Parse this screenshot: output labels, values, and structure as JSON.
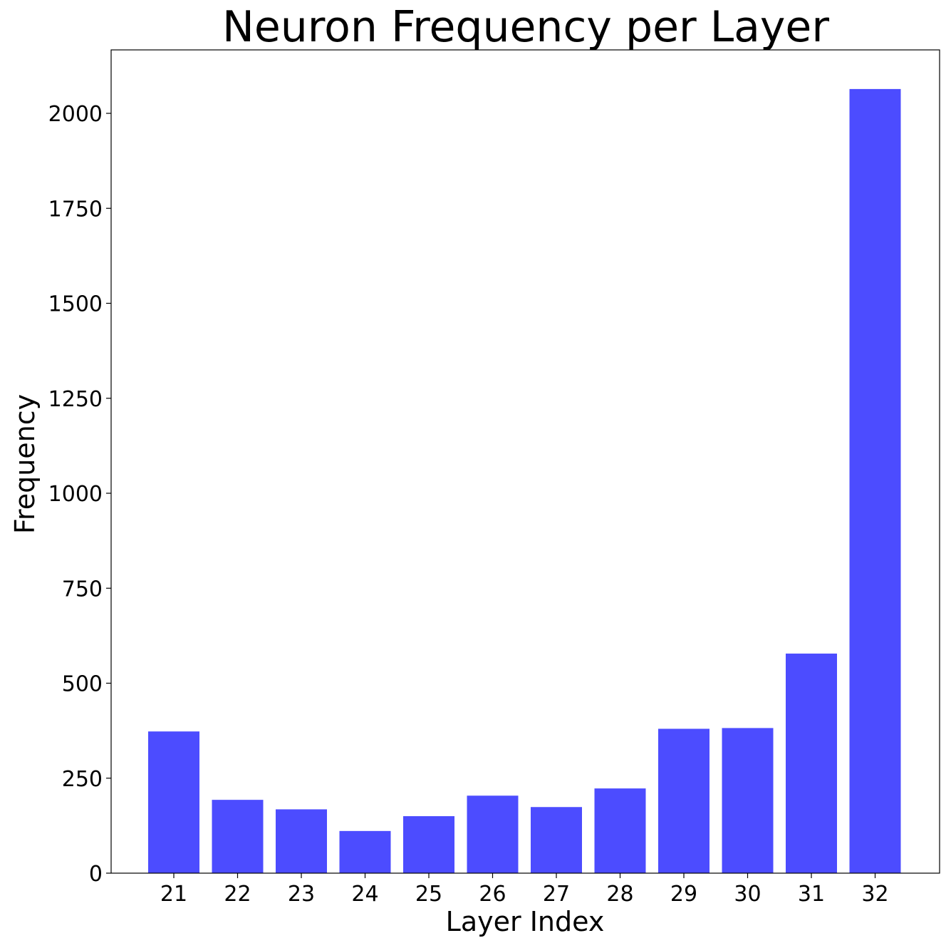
{
  "chart_data": {
    "type": "bar",
    "title": "Neuron Frequency per Layer",
    "xlabel": "Layer Index",
    "ylabel": "Frequency",
    "categories": [
      "21",
      "22",
      "23",
      "24",
      "25",
      "26",
      "27",
      "28",
      "29",
      "30",
      "31",
      "32"
    ],
    "values": [
      373,
      193,
      168,
      111,
      150,
      204,
      174,
      223,
      380,
      382,
      578,
      2064
    ],
    "ylim": [
      0,
      2167
    ],
    "yticks": [
      0,
      250,
      500,
      750,
      1000,
      1250,
      1500,
      1750,
      2000
    ],
    "bar_color": "#4c4cff",
    "grid": false,
    "legend": "none"
  }
}
